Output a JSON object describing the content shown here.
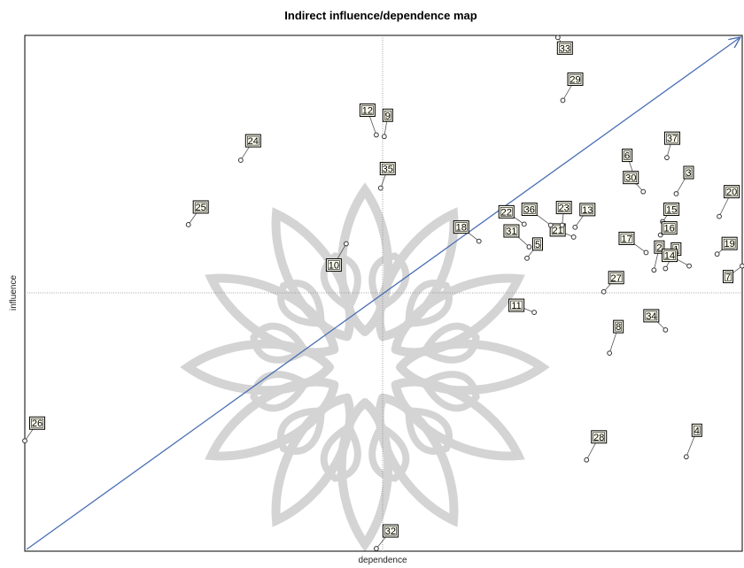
{
  "chart_data": {
    "type": "scatter",
    "title": "Indirect influence/dependence map",
    "xlabel": "dependence",
    "ylabel": "influence",
    "xlim": [
      0,
      100
    ],
    "ylim": [
      0,
      100
    ],
    "grid": false,
    "points": [
      {
        "label": "1",
        "x": 89.3,
        "y": 54.8
      },
      {
        "label": "2",
        "x": 87.7,
        "y": 54.5
      },
      {
        "label": "3",
        "x": 90.8,
        "y": 69.3
      },
      {
        "label": "4",
        "x": 92.2,
        "y": 18.3
      },
      {
        "label": "5",
        "x": 70.0,
        "y": 56.8
      },
      {
        "label": "6",
        "x": 85.2,
        "y": 71.6
      },
      {
        "label": "7",
        "x": 100.0,
        "y": 55.3
      },
      {
        "label": "8",
        "x": 81.5,
        "y": 38.4
      },
      {
        "label": "9",
        "x": 50.1,
        "y": 80.4
      },
      {
        "label": "10",
        "x": 44.8,
        "y": 59.6
      },
      {
        "label": "11",
        "x": 71.0,
        "y": 46.3
      },
      {
        "label": "12",
        "x": 49.0,
        "y": 80.7
      },
      {
        "label": "13",
        "x": 76.7,
        "y": 62.8
      },
      {
        "label": "14",
        "x": 92.6,
        "y": 55.3
      },
      {
        "label": "15",
        "x": 88.9,
        "y": 63.9
      },
      {
        "label": "16",
        "x": 88.6,
        "y": 61.3
      },
      {
        "label": "17",
        "x": 86.6,
        "y": 57.9
      },
      {
        "label": "18",
        "x": 63.3,
        "y": 60.1
      },
      {
        "label": "19",
        "x": 96.5,
        "y": 57.6
      },
      {
        "label": "20",
        "x": 96.8,
        "y": 64.9
      },
      {
        "label": "21",
        "x": 76.5,
        "y": 60.9
      },
      {
        "label": "22",
        "x": 69.6,
        "y": 63.4
      },
      {
        "label": "23",
        "x": 74.9,
        "y": 63.2
      },
      {
        "label": "24",
        "x": 30.1,
        "y": 75.8
      },
      {
        "label": "25",
        "x": 22.8,
        "y": 63.3
      },
      {
        "label": "26",
        "x": 0.0,
        "y": 21.4
      },
      {
        "label": "27",
        "x": 80.7,
        "y": 50.3
      },
      {
        "label": "28",
        "x": 78.3,
        "y": 17.7
      },
      {
        "label": "29",
        "x": 75.0,
        "y": 87.4
      },
      {
        "label": "30",
        "x": 86.2,
        "y": 69.7
      },
      {
        "label": "31",
        "x": 70.3,
        "y": 59.0
      },
      {
        "label": "32",
        "x": 49.0,
        "y": 0.5
      },
      {
        "label": "33",
        "x": 74.3,
        "y": 99.6
      },
      {
        "label": "34",
        "x": 89.3,
        "y": 42.9
      },
      {
        "label": "35",
        "x": 49.6,
        "y": 70.4
      },
      {
        "label": "36",
        "x": 73.3,
        "y": 63.2
      },
      {
        "label": "37",
        "x": 89.5,
        "y": 76.3
      }
    ]
  }
}
